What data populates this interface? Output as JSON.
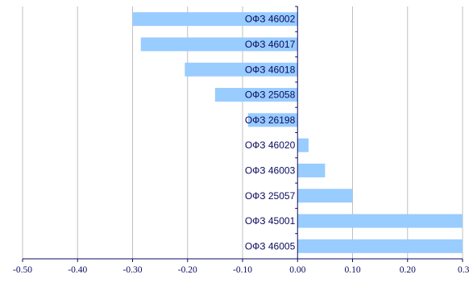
{
  "chart_data": {
    "type": "bar",
    "orientation": "horizontal",
    "categories": [
      "ОФЗ 46002",
      "ОФЗ 46017",
      "ОФЗ 46018",
      "ОФЗ 25058",
      "ОФЗ 26198",
      "ОФЗ 46020",
      "ОФЗ 46003",
      "ОФЗ 25057",
      "ОФЗ 45001",
      "ОФЗ 46005"
    ],
    "values": [
      -0.3,
      -0.285,
      -0.205,
      -0.15,
      -0.09,
      0.02,
      0.05,
      0.1,
      0.3,
      0.3
    ],
    "xlim": [
      -0.5,
      0.3
    ],
    "xticks": [
      "-0.50",
      "-0.40",
      "-0.30",
      "-0.20",
      "-0.10",
      "0.00",
      "0.10",
      "0.20",
      "0.30"
    ],
    "grid": true,
    "bar_color": "#99ccff",
    "axis_color": "#0b0b60",
    "grid_color": "#c0c0c0"
  }
}
